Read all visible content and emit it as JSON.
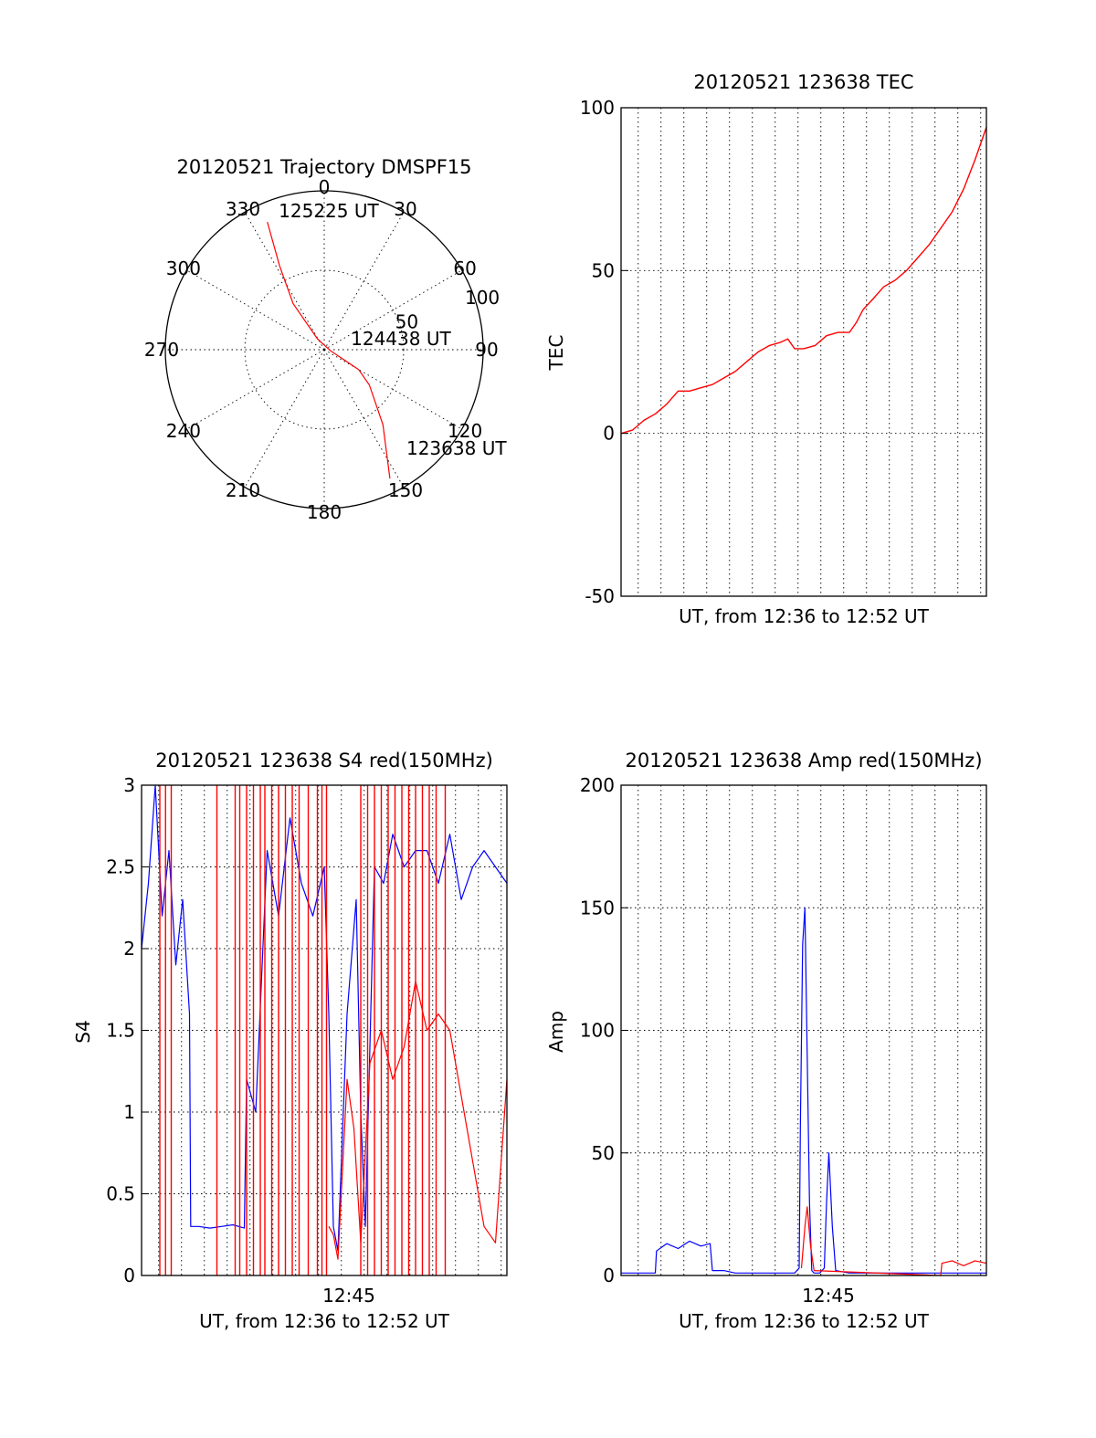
{
  "colors": {
    "red": "#ff0000",
    "blue": "#0000ff",
    "axis": "#000000"
  },
  "chart_data": [
    {
      "type": "polar",
      "title": "20120521 Trajectory DMSPF15",
      "angle_labels": [
        "0",
        "30",
        "60",
        "90",
        "120",
        "150",
        "180",
        "210",
        "240",
        "270",
        "300",
        "330"
      ],
      "radial_labels": [
        "50",
        "100"
      ],
      "rlim": [
        0,
        100
      ],
      "grid": true,
      "series": [
        {
          "color": "red",
          "points": [
            {
              "az": 153,
              "r": 91
            },
            {
              "az": 142,
              "r": 60
            },
            {
              "az": 128,
              "r": 36
            },
            {
              "az": 120,
              "r": 25
            },
            {
              "az": 100,
              "r": 4
            },
            {
              "az": 328,
              "r": 8
            },
            {
              "az": 326,
              "r": 35
            },
            {
              "az": 332,
              "r": 60
            },
            {
              "az": 336,
              "r": 88
            }
          ]
        }
      ],
      "annotations": [
        {
          "text": "125225 UT",
          "az": 341,
          "r": 88
        },
        {
          "text": "124438 UT",
          "az": 80,
          "r": 17
        },
        {
          "text": "123638 UT",
          "az": 142,
          "r": 84
        }
      ]
    },
    {
      "type": "line",
      "title": "20120521 123638 TEC",
      "xlabel": "UT, from 12:36 to 12:52 UT",
      "ylabel": "TEC",
      "xlim": [
        0,
        16
      ],
      "ylim": [
        -50,
        100
      ],
      "yticks": [
        "100",
        "50",
        "0",
        "-50"
      ],
      "grid": true,
      "series": [
        {
          "color": "red",
          "x": [
            0.0,
            0.5,
            1.0,
            1.5,
            2.0,
            2.5,
            3.0,
            3.5,
            4.0,
            4.5,
            5.0,
            5.5,
            6.0,
            6.5,
            7.0,
            7.3,
            7.6,
            8.0,
            8.5,
            9.0,
            9.5,
            10.0,
            10.3,
            10.6,
            11.0,
            11.5,
            12.0,
            12.5,
            13.0,
            13.5,
            14.0,
            14.5,
            15.0,
            15.5,
            16.0
          ],
          "y": [
            0,
            1,
            4,
            6,
            9,
            13,
            13,
            14,
            15,
            17,
            19,
            22,
            25,
            27,
            28,
            29,
            26,
            26,
            27,
            30,
            31,
            31,
            34,
            38,
            41,
            45,
            47,
            50,
            54,
            58,
            63,
            68,
            75,
            84,
            94
          ]
        }
      ]
    },
    {
      "type": "line",
      "title": "20120521 123638 S4 red(150MHz)",
      "xlabel": "UT, from 12:36 to 12:52 UT",
      "ylabel": "S4",
      "xlim": [
        0,
        16
      ],
      "ylim": [
        0,
        3
      ],
      "yticks": [
        "3",
        "2.5",
        "2",
        "1.5",
        "1",
        "0.5",
        "0"
      ],
      "xticks": [
        "12:45"
      ],
      "grid": true,
      "series": [
        {
          "color": "blue",
          "x": [
            0.0,
            0.3,
            0.6,
            0.9,
            1.2,
            1.5,
            1.8,
            2.1,
            2.15,
            2.5,
            3.0,
            3.5,
            4.0,
            4.5,
            4.6,
            5.0,
            5.5,
            6.0,
            6.5,
            7.0,
            7.5,
            8.0,
            8.2,
            8.4,
            8.6,
            9.0,
            9.4,
            9.6,
            9.8,
            10.2,
            10.6,
            11.0,
            11.5,
            12.0,
            12.5,
            13.0,
            13.5,
            14.0,
            14.5,
            15.0,
            15.5,
            16.0
          ],
          "y": [
            2.0,
            2.4,
            3.0,
            2.2,
            2.6,
            1.9,
            2.3,
            1.6,
            0.3,
            0.3,
            0.29,
            0.3,
            0.31,
            0.29,
            1.2,
            1.0,
            2.6,
            2.2,
            2.8,
            2.4,
            2.2,
            2.5,
            1.6,
            0.3,
            0.15,
            1.6,
            2.3,
            1.0,
            0.3,
            2.5,
            2.4,
            2.7,
            2.5,
            2.6,
            2.6,
            2.4,
            2.7,
            2.3,
            2.5,
            2.6,
            2.5,
            2.4
          ]
        },
        {
          "color": "red",
          "x": [
            8.2,
            8.4,
            8.6,
            9.0,
            9.3,
            9.6,
            10.0,
            10.5,
            11.0,
            11.5,
            12.0,
            12.5,
            13.0,
            13.5,
            14.0,
            14.5,
            15.0,
            15.5,
            16.0
          ],
          "y": [
            0.3,
            0.25,
            0.1,
            1.2,
            0.9,
            0.2,
            1.3,
            1.5,
            1.2,
            1.4,
            1.8,
            1.5,
            1.6,
            1.5,
            1.1,
            0.7,
            0.3,
            0.2,
            1.2
          ]
        }
      ]
    },
    {
      "type": "line",
      "title": "20120521 123638 Amp red(150MHz)",
      "xlabel": "UT, from 12:36 to 12:52 UT",
      "ylabel": "Amp",
      "xlim": [
        0,
        16
      ],
      "ylim": [
        0,
        200
      ],
      "yticks": [
        "200",
        "150",
        "100",
        "50",
        "0"
      ],
      "xticks": [
        "12:45"
      ],
      "grid": true,
      "series": [
        {
          "color": "blue",
          "x": [
            0.0,
            1.5,
            1.55,
            2.0,
            2.5,
            3.0,
            3.5,
            3.9,
            4.0,
            4.5,
            5.0,
            6.0,
            7.0,
            7.6,
            7.8,
            7.85,
            7.95,
            8.05,
            8.15,
            8.25,
            8.35,
            8.45,
            8.7,
            8.9,
            9.0,
            9.1,
            9.25,
            9.4,
            10.0,
            11.0,
            12.0,
            13.0,
            14.0,
            15.0,
            16.0
          ],
          "y": [
            1,
            1,
            10,
            13,
            11,
            14,
            12,
            13,
            2,
            2,
            1,
            1,
            1,
            1,
            3,
            60,
            135,
            150,
            90,
            30,
            2,
            1,
            1,
            3,
            30,
            50,
            20,
            2,
            1,
            1,
            1,
            1,
            1,
            1,
            1
          ]
        },
        {
          "color": "red",
          "x": [
            7.9,
            8.05,
            8.15,
            8.3,
            8.45,
            14.0,
            14.05,
            14.5,
            15.0,
            15.5,
            16.0
          ],
          "y": [
            3,
            20,
            28,
            12,
            2,
            0,
            5,
            6,
            4,
            6,
            5
          ]
        }
      ]
    }
  ]
}
